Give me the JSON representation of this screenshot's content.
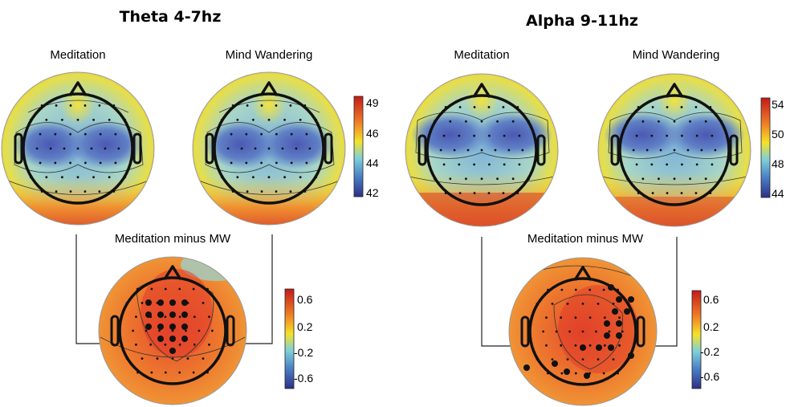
{
  "panels": [
    {
      "title": "Theta 4-7hz",
      "map_left_label": "Meditation",
      "map_right_label": "Mind Wandering",
      "diff_label": "Meditation minus MW",
      "colorbar_top_ticks": [
        "49",
        "46",
        "44",
        "42"
      ],
      "colorbar_bottom_ticks": [
        "0.6",
        "0.2",
        "-0.2",
        "-0.6"
      ]
    },
    {
      "title": "Alpha 9-11hz",
      "map_left_label": "Meditation",
      "map_right_label": "Mind Wandering",
      "diff_label": "Meditation minus MW",
      "colorbar_top_ticks": [
        "54",
        "50",
        "48",
        "44"
      ],
      "colorbar_bottom_ticks": [
        "0.6",
        "0.2",
        "-0.2",
        "-0.6"
      ]
    }
  ],
  "colors": {
    "red": "#d93a2b",
    "orange": "#ef8a2c",
    "yellow": "#f2de2c",
    "cyan": "#6fc9dc",
    "blue": "#3f49a8",
    "outline": "#111111"
  }
}
